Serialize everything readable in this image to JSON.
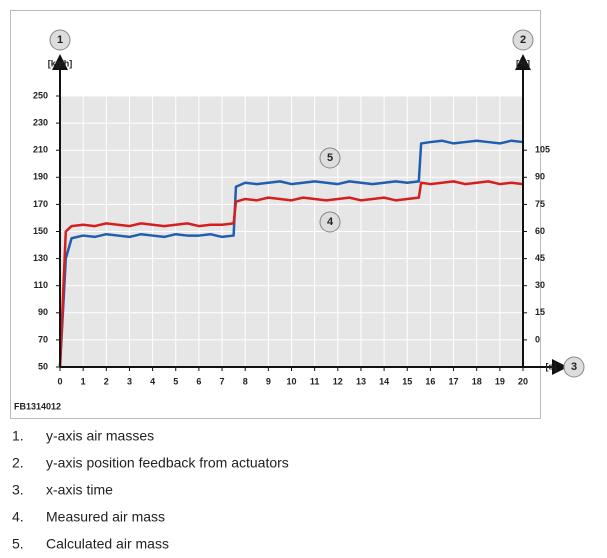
{
  "chart_data": {
    "type": "line",
    "y_label": "[kg/h]",
    "y2_label": "[%]",
    "x_label": "[s]",
    "axis_callouts": {
      "y": "1",
      "y2": "2",
      "x": "3"
    },
    "figure_code": "FB1314012",
    "x": [
      0,
      0.25,
      0.5,
      1,
      1.5,
      2,
      2.5,
      3,
      3.5,
      4,
      4.5,
      5,
      5.5,
      6,
      6.5,
      7,
      7.5,
      7.6,
      8,
      8.5,
      9,
      9.5,
      10,
      10.5,
      11,
      11.5,
      12,
      12.5,
      13,
      13.5,
      14,
      14.5,
      15,
      15.5,
      15.6,
      16,
      16.5,
      17,
      17.5,
      18,
      18.5,
      19,
      19.5,
      20
    ],
    "series": [
      {
        "callout": "5",
        "color": "#1f5fad",
        "values": [
          50,
          130,
          145,
          147,
          146,
          148,
          147,
          146,
          148,
          147,
          146,
          148,
          147,
          147,
          148,
          146,
          147,
          183,
          186,
          185,
          186,
          187,
          185,
          186,
          187,
          186,
          185,
          187,
          186,
          185,
          186,
          187,
          186,
          187,
          215,
          216,
          217,
          215,
          216,
          217,
          216,
          215,
          217,
          216
        ]
      },
      {
        "callout": "4",
        "color": "#d41f1f",
        "values": [
          50,
          150,
          154,
          155,
          154,
          156,
          155,
          154,
          156,
          155,
          154,
          155,
          156,
          154,
          155,
          155,
          156,
          172,
          174,
          173,
          175,
          174,
          173,
          175,
          174,
          173,
          174,
          175,
          173,
          174,
          175,
          173,
          174,
          175,
          186,
          185,
          186,
          187,
          185,
          186,
          187,
          185,
          186,
          185
        ]
      }
    ],
    "xlim": [
      0,
      20
    ],
    "xticks": [
      0,
      1,
      2,
      3,
      4,
      5,
      6,
      7,
      8,
      9,
      10,
      11,
      12,
      13,
      14,
      15,
      16,
      17,
      18,
      19,
      20
    ],
    "ylim": [
      50,
      250
    ],
    "yticks": [
      50,
      70,
      90,
      110,
      130,
      150,
      170,
      190,
      210,
      230,
      250
    ],
    "y2lim": [
      -15,
      135
    ],
    "y2ticks": [
      0,
      15,
      30,
      45,
      60,
      75,
      90,
      105
    ],
    "grid": true
  },
  "notes": [
    {
      "number": "1.",
      "text": "y-axis air masses"
    },
    {
      "number": "2.",
      "text": "y-axis position feedback from actuators"
    },
    {
      "number": "3.",
      "text": "x-axis time"
    },
    {
      "number": "4.",
      "text": "Measured air mass"
    },
    {
      "number": "5.",
      "text": "Calculated air mass"
    }
  ]
}
